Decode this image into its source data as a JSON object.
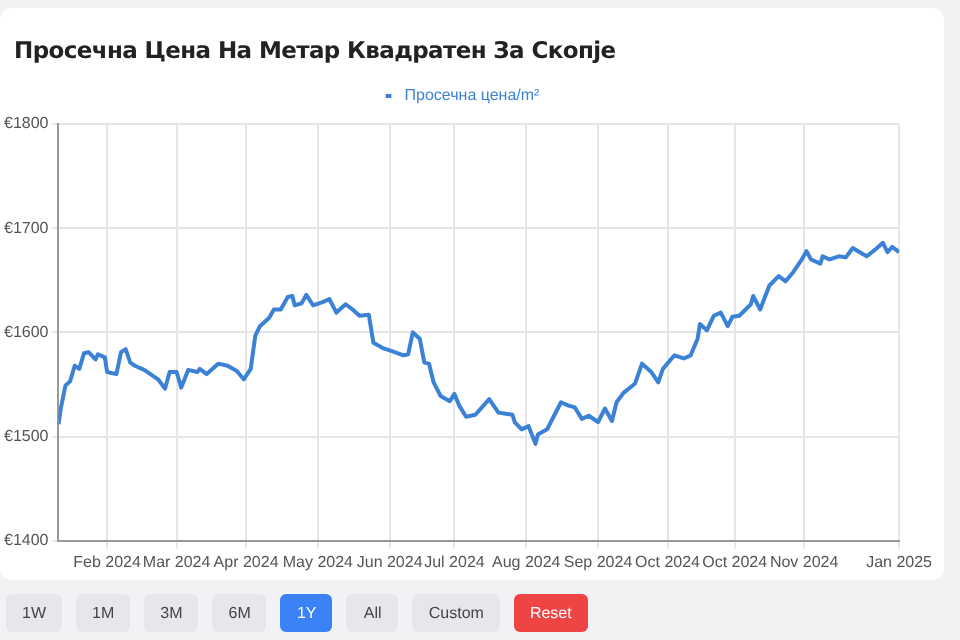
{
  "chart_data": {
    "type": "line",
    "title": "Просечна Цена На Метар Квадратен За Скопје",
    "x": [
      "2024-01-12",
      "2024-01-13",
      "2024-01-15",
      "2024-01-17",
      "2024-01-19",
      "2024-01-21",
      "2024-01-23",
      "2024-01-25",
      "2024-01-28",
      "2024-01-29",
      "2024-02-01",
      "2024-02-02",
      "2024-02-06",
      "2024-02-08",
      "2024-02-10",
      "2024-02-12",
      "2024-02-14",
      "2024-02-18",
      "2024-02-24",
      "2024-02-27",
      "2024-02-29",
      "2024-03-03",
      "2024-03-05",
      "2024-03-08",
      "2024-03-12",
      "2024-03-13",
      "2024-03-16",
      "2024-03-21",
      "2024-03-25",
      "2024-03-29",
      "2024-04-01",
      "2024-04-04",
      "2024-04-06",
      "2024-04-08",
      "2024-04-12",
      "2024-04-14",
      "2024-04-17",
      "2024-04-20",
      "2024-04-22",
      "2024-04-23",
      "2024-04-26",
      "2024-04-28",
      "2024-05-01",
      "2024-05-05",
      "2024-05-08",
      "2024-05-11",
      "2024-05-15",
      "2024-05-18",
      "2024-05-21",
      "2024-05-25",
      "2024-05-27",
      "2024-05-31",
      "2024-06-04",
      "2024-06-09",
      "2024-06-11",
      "2024-06-13",
      "2024-06-16",
      "2024-06-18",
      "2024-06-20",
      "2024-06-22",
      "2024-06-25",
      "2024-06-29",
      "2024-07-01",
      "2024-07-03",
      "2024-07-06",
      "2024-07-10",
      "2024-07-16",
      "2024-07-20",
      "2024-07-26",
      "2024-07-27",
      "2024-07-30",
      "2024-08-02",
      "2024-08-05",
      "2024-08-06",
      "2024-08-10",
      "2024-08-13",
      "2024-08-16",
      "2024-08-19",
      "2024-08-22",
      "2024-08-25",
      "2024-08-28",
      "2024-09-01",
      "2024-09-04",
      "2024-09-07",
      "2024-09-09",
      "2024-09-12",
      "2024-09-17",
      "2024-09-20",
      "2024-09-24",
      "2024-09-27",
      "2024-09-29",
      "2024-10-04",
      "2024-10-08",
      "2024-10-11",
      "2024-10-14",
      "2024-10-15",
      "2024-10-18",
      "2024-10-21",
      "2024-10-24",
      "2024-10-27",
      "2024-10-29",
      "2024-11-01",
      "2024-11-06",
      "2024-11-07",
      "2024-11-10",
      "2024-11-14",
      "2024-11-18",
      "2024-11-21",
      "2024-11-24",
      "2024-11-28",
      "2024-11-30",
      "2024-12-02",
      "2024-12-06",
      "2024-12-07",
      "2024-12-10",
      "2024-12-14",
      "2024-12-17",
      "2024-12-20",
      "2024-12-23",
      "2024-12-26",
      "2024-12-30",
      "2025-01-02",
      "2025-01-04",
      "2025-01-06",
      "2025-01-09"
    ],
    "series": [
      {
        "name": "Просечна цена/m²",
        "color": "#3b82d6",
        "values": [
          1512,
          1527,
          1549,
          1553,
          1568,
          1565,
          1580,
          1581,
          1574,
          1579,
          1576,
          1562,
          1560,
          1581,
          1584,
          1571,
          1568,
          1564,
          1555,
          1546,
          1562,
          1562,
          1547,
          1564,
          1562,
          1565,
          1560,
          1570,
          1568,
          1563,
          1555,
          1565,
          1597,
          1606,
          1614,
          1622,
          1622,
          1634,
          1635,
          1626,
          1628,
          1636,
          1626,
          1629,
          1632,
          1619,
          1627,
          1622,
          1616,
          1617,
          1590,
          1585,
          1582,
          1578,
          1579,
          1600,
          1594,
          1571,
          1570,
          1552,
          1539,
          1534,
          1541,
          1530,
          1519,
          1521,
          1536,
          1523,
          1521,
          1514,
          1507,
          1510,
          1493,
          1502,
          1507,
          1520,
          1533,
          1530,
          1528,
          1517,
          1520,
          1514,
          1527,
          1515,
          1533,
          1542,
          1551,
          1570,
          1562,
          1552,
          1565,
          1578,
          1575,
          1578,
          1594,
          1608,
          1602,
          1616,
          1619,
          1606,
          1615,
          1616,
          1627,
          1635,
          1622,
          1645,
          1654,
          1649,
          1657,
          1670,
          1678,
          1670,
          1666,
          1673,
          1670,
          1673,
          1672,
          1681,
          1677,
          1673,
          1680,
          1686,
          1677,
          1682,
          1677
        ]
      }
    ],
    "xlim": [
      "2024-01-12",
      "2025-01-09"
    ],
    "xticks": [
      {
        "value": "2024-02-02",
        "label": "Feb 2024"
      },
      {
        "value": "2024-03-03",
        "label": "Mar 2024"
      },
      {
        "value": "2024-04-02",
        "label": "Apr 2024"
      },
      {
        "value": "2024-05-03",
        "label": "May 2024"
      },
      {
        "value": "2024-06-03",
        "label": "Jun 2024"
      },
      {
        "value": "2024-07-01",
        "label": "Jul 2024"
      },
      {
        "value": "2024-08-01",
        "label": "Aug 2024"
      },
      {
        "value": "2024-09-01",
        "label": "Sep 2024"
      },
      {
        "value": "2024-10-01",
        "label": "Oct 2024"
      },
      {
        "value": "2024-10-30",
        "label": "Oct 2024"
      },
      {
        "value": "2024-11-29",
        "label": "Nov 2024"
      },
      {
        "value": "2025-01-09",
        "label": "Jan 2025"
      }
    ],
    "ylim": [
      1400,
      1800
    ],
    "yticks": [
      {
        "value": 1400,
        "label": "€1400"
      },
      {
        "value": 1500,
        "label": "€1500"
      },
      {
        "value": 1600,
        "label": "€1600"
      },
      {
        "value": 1700,
        "label": "€1700"
      },
      {
        "value": 1800,
        "label": "€1800"
      }
    ],
    "grid": true,
    "legend": "top",
    "marker": "none",
    "line_style": "solid",
    "annotations": [
      "1W",
      "1M",
      "3M",
      "6M",
      "1Y",
      "All",
      "Custom",
      "Reset"
    ]
  }
}
